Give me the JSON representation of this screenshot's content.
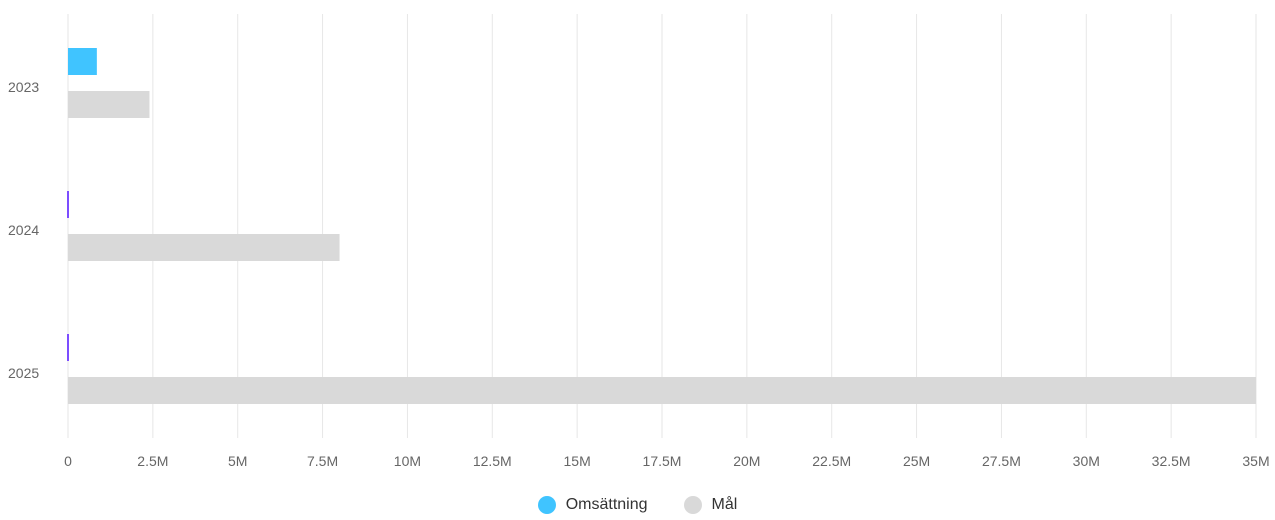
{
  "chart_data": {
    "type": "bar",
    "orientation": "horizontal",
    "categories": [
      "2023",
      "2024",
      "2025"
    ],
    "series": [
      {
        "name": "Omsättning",
        "color": "#40c4ff",
        "values": [
          850000,
          0,
          0
        ]
      },
      {
        "name": "Mål",
        "color": "#d9d9d9",
        "values": [
          2400000,
          8000000,
          35000000
        ]
      }
    ],
    "xlim": [
      0,
      35000000
    ],
    "x_ticks": [
      {
        "value": 0,
        "label": "0"
      },
      {
        "value": 2500000,
        "label": "2.5M"
      },
      {
        "value": 5000000,
        "label": "5M"
      },
      {
        "value": 7500000,
        "label": "7.5M"
      },
      {
        "value": 10000000,
        "label": "10M"
      },
      {
        "value": 12500000,
        "label": "12.5M"
      },
      {
        "value": 15000000,
        "label": "15M"
      },
      {
        "value": 17500000,
        "label": "17.5M"
      },
      {
        "value": 20000000,
        "label": "20M"
      },
      {
        "value": 22500000,
        "label": "22.5M"
      },
      {
        "value": 25000000,
        "label": "25M"
      },
      {
        "value": 27500000,
        "label": "27.5M"
      },
      {
        "value": 30000000,
        "label": "30M"
      },
      {
        "value": 32500000,
        "label": "32.5M"
      },
      {
        "value": 35000000,
        "label": "35M"
      }
    ],
    "grid": true,
    "zero_value_marker_color": "#7c4dff",
    "legend_position": "bottom-center"
  }
}
